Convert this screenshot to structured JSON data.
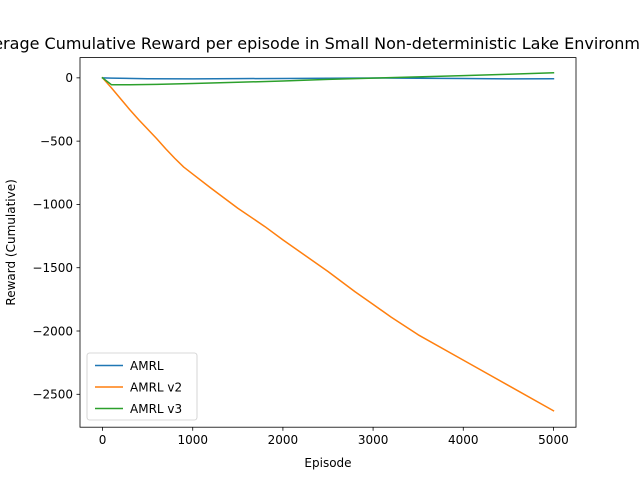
{
  "chart_data": {
    "type": "line",
    "title": "Average Cumulative Reward per episode in Small Non-deterministic Lake Environment",
    "xlabel": "Episode",
    "ylabel": "Reward (Cumulative)",
    "xlim": [
      -250,
      5250
    ],
    "ylim": [
      -2760,
      160
    ],
    "xticks": [
      0,
      1000,
      2000,
      3000,
      4000,
      5000
    ],
    "yticks": [
      0,
      -500,
      -1000,
      -1500,
      -2000,
      -2500
    ],
    "xtick_labels": [
      "0",
      "1000",
      "2000",
      "3000",
      "4000",
      "5000"
    ],
    "ytick_labels": [
      "0",
      "−500",
      "−1000",
      "−1500",
      "−2000",
      "−2500"
    ],
    "grid": false,
    "legend_position": "lower-left",
    "series": [
      {
        "name": "AMRL",
        "color": "#1f77b4",
        "x": [
          0,
          100,
          500,
          1000,
          1500,
          2000,
          2500,
          3000,
          3500,
          4000,
          4500,
          5000
        ],
        "y": [
          0,
          -2,
          -7,
          -8,
          -6,
          -5,
          -3,
          -1,
          -3,
          -5,
          -8,
          -7
        ]
      },
      {
        "name": "AMRL v2",
        "color": "#ff7f0e",
        "x": [
          0,
          100,
          200,
          300,
          400,
          500,
          600,
          700,
          800,
          900,
          1000,
          1200,
          1500,
          1800,
          2000,
          2500,
          2800,
          3000,
          3200,
          3500,
          4000,
          4500,
          5000
        ],
        "y": [
          0,
          -80,
          -165,
          -250,
          -330,
          -405,
          -480,
          -560,
          -635,
          -705,
          -760,
          -870,
          -1030,
          -1175,
          -1280,
          -1530,
          -1690,
          -1790,
          -1890,
          -2030,
          -2230,
          -2430,
          -2630
        ]
      },
      {
        "name": "AMRL v3",
        "color": "#2ca02c",
        "x": [
          0,
          100,
          300,
          600,
          1000,
          1500,
          2000,
          2500,
          3000,
          3500,
          4000,
          4500,
          5000
        ],
        "y": [
          0,
          -55,
          -55,
          -52,
          -45,
          -35,
          -25,
          -12,
          -2,
          8,
          18,
          28,
          40
        ]
      }
    ]
  }
}
